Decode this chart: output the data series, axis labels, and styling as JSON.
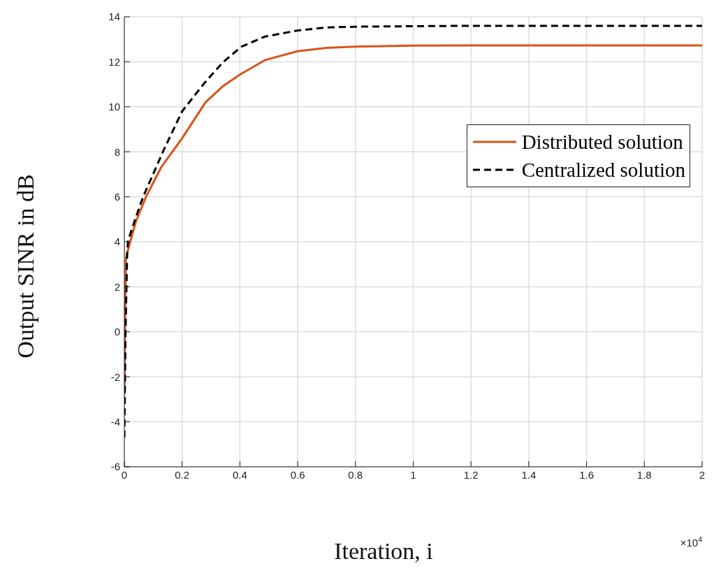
{
  "chart_data": {
    "type": "line",
    "xlabel": "Iteration, i",
    "ylabel": "Output SINR in dB",
    "annotations": [
      "×10$^{4}$"
    ],
    "xlim": [
      0,
      2
    ],
    "xticks": [
      0,
      0.2,
      0.4,
      0.6,
      0.8,
      1,
      1.2,
      1.4,
      1.6,
      1.8,
      2
    ],
    "ylim": [
      -6,
      14
    ],
    "yticks": [
      -6,
      -4,
      -2,
      0,
      2,
      4,
      6,
      8,
      10,
      12,
      14
    ],
    "grid": true,
    "legend": "right",
    "series": [
      {
        "name": "Distributed solution",
        "color": "#d95319",
        "line_style": "solid",
        "x": [
          0,
          0.003,
          0.005,
          0.013,
          0.04,
          0.075,
          0.127,
          0.2,
          0.281,
          0.34,
          0.4,
          0.488,
          0.6,
          0.7,
          0.8,
          1,
          1.2,
          1.4,
          1.6,
          1.8,
          2
        ],
        "values": [
          -2.8,
          1,
          3.2,
          3.66,
          4.9,
          6.0,
          7.3,
          8.6,
          10.2,
          10.9,
          11.43,
          12.08,
          12.47,
          12.62,
          12.67,
          12.72,
          12.73,
          12.73,
          12.73,
          12.73,
          12.73
        ]
      },
      {
        "name": "Centralized solution",
        "color": "#000000",
        "line_style": "dashed",
        "x": [
          0,
          0.004,
          0.01,
          0.013,
          0.04,
          0.065,
          0.137,
          0.2,
          0.28,
          0.343,
          0.405,
          0.487,
          0.6,
          0.694,
          0.8,
          1,
          1.2,
          1.4,
          1.6,
          1.8,
          2
        ],
        "values": [
          -4.7,
          0,
          3.6,
          4.05,
          5.1,
          6.0,
          8.1,
          9.8,
          11.1,
          12.0,
          12.67,
          13.12,
          13.39,
          13.52,
          13.56,
          13.58,
          13.6,
          13.6,
          13.6,
          13.6,
          13.6
        ]
      }
    ]
  }
}
